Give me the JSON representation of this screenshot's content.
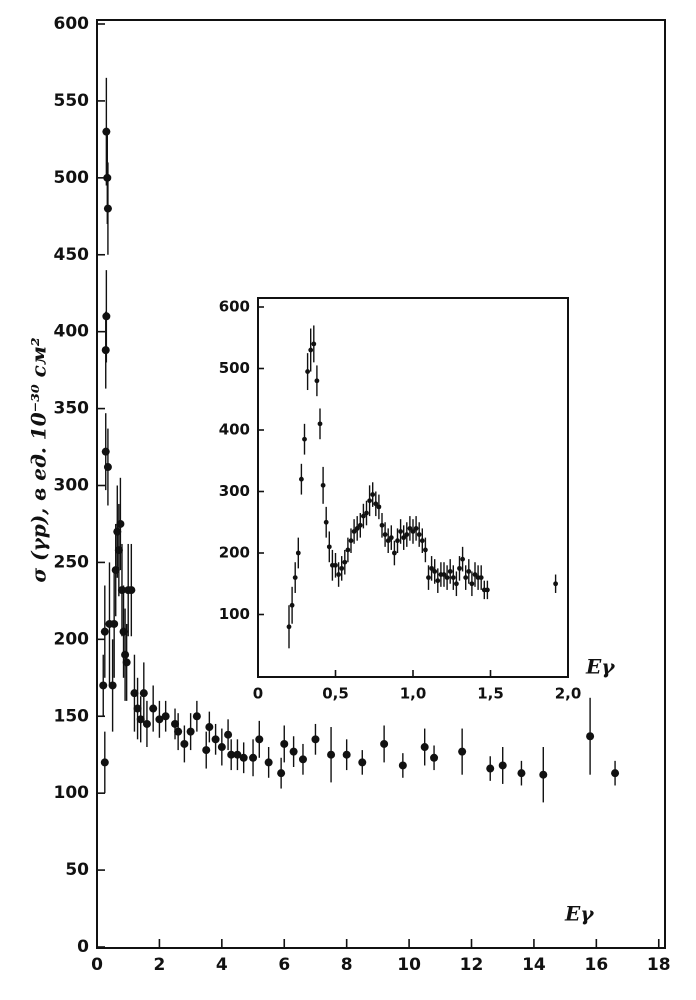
{
  "chart_data": [
    {
      "type": "scatter",
      "y_label": "σ (γp), в ед. 10⁻³⁰ см²",
      "x_label": "Eγ",
      "xlim": [
        0,
        18.2
      ],
      "ylim": [
        0,
        600
      ],
      "xticks": [
        0,
        2,
        4,
        6,
        8,
        10,
        12,
        14,
        16,
        18
      ],
      "yticks": [
        0,
        50,
        100,
        150,
        200,
        250,
        300,
        350,
        400,
        450,
        500,
        550,
        600
      ],
      "color": "#111111",
      "x": [
        0.2,
        0.25,
        0.25,
        0.28,
        0.28,
        0.3,
        0.3,
        0.33,
        0.35,
        0.35,
        0.4,
        0.5,
        0.55,
        0.6,
        0.65,
        0.7,
        0.75,
        0.8,
        0.85,
        0.9,
        0.95,
        1.0,
        1.1,
        1.2,
        1.3,
        1.4,
        1.5,
        1.6,
        1.8,
        2.0,
        2.2,
        2.5,
        2.6,
        2.8,
        3.0,
        3.2,
        3.5,
        3.6,
        3.8,
        4.0,
        4.2,
        4.3,
        4.5,
        4.7,
        5.0,
        5.2,
        5.5,
        5.9,
        6.0,
        6.3,
        6.6,
        7.0,
        7.5,
        8.0,
        8.5,
        9.2,
        9.8,
        10.5,
        10.8,
        11.7,
        12.6,
        13.0,
        13.6,
        14.3,
        15.8,
        16.6
      ],
      "values": [
        170,
        120,
        205,
        322,
        388,
        410,
        530,
        500,
        480,
        312,
        210,
        170,
        210,
        245,
        270,
        258,
        275,
        232,
        205,
        190,
        185,
        232,
        232,
        165,
        155,
        148,
        165,
        145,
        155,
        148,
        150,
        145,
        140,
        132,
        140,
        150,
        128,
        143,
        135,
        130,
        138,
        125,
        125,
        123,
        123,
        135,
        120,
        113,
        132,
        127,
        122,
        135,
        125,
        125,
        120,
        132,
        118,
        130,
        123,
        127,
        116,
        118,
        113,
        112,
        137,
        113
      ],
      "errors": [
        20,
        20,
        30,
        25,
        25,
        30,
        35,
        30,
        30,
        25,
        40,
        30,
        35,
        30,
        30,
        30,
        30,
        30,
        30,
        30,
        25,
        30,
        30,
        25,
        20,
        15,
        20,
        15,
        15,
        12,
        10,
        10,
        12,
        12,
        12,
        10,
        12,
        10,
        10,
        12,
        10,
        10,
        10,
        10,
        12,
        12,
        10,
        10,
        12,
        10,
        10,
        10,
        18,
        10,
        8,
        12,
        8,
        12,
        8,
        15,
        8,
        12,
        8,
        18,
        25,
        8
      ]
    },
    {
      "type": "scatter",
      "x_label": "Eγ",
      "xlim": [
        0,
        2.0
      ],
      "ylim": [
        0,
        600
      ],
      "xticks": [
        0,
        {
          "value": 0.5,
          "label": "0,5"
        },
        {
          "value": 1.0,
          "label": "1,0"
        },
        {
          "value": 1.5,
          "label": "1,5"
        },
        {
          "value": 2.0,
          "label": "2,0"
        }
      ],
      "yticks": [
        100,
        200,
        300,
        400,
        500,
        600
      ],
      "color": "#111111",
      "x": [
        0.2,
        0.22,
        0.24,
        0.26,
        0.28,
        0.3,
        0.32,
        0.34,
        0.36,
        0.38,
        0.4,
        0.42,
        0.44,
        0.46,
        0.48,
        0.5,
        0.52,
        0.54,
        0.56,
        0.58,
        0.6,
        0.62,
        0.64,
        0.66,
        0.68,
        0.7,
        0.72,
        0.74,
        0.76,
        0.78,
        0.8,
        0.82,
        0.84,
        0.86,
        0.88,
        0.9,
        0.92,
        0.94,
        0.96,
        0.98,
        1.0,
        1.02,
        1.04,
        1.06,
        1.08,
        1.1,
        1.12,
        1.14,
        1.16,
        1.18,
        1.2,
        1.22,
        1.24,
        1.26,
        1.28,
        1.3,
        1.32,
        1.34,
        1.36,
        1.38,
        1.4,
        1.42,
        1.44,
        1.46,
        1.48,
        1.92
      ],
      "values": [
        80,
        115,
        160,
        200,
        320,
        385,
        495,
        530,
        540,
        480,
        410,
        310,
        250,
        210,
        180,
        180,
        165,
        175,
        185,
        205,
        220,
        235,
        240,
        245,
        260,
        265,
        285,
        295,
        280,
        275,
        245,
        230,
        220,
        225,
        200,
        220,
        235,
        225,
        230,
        240,
        235,
        240,
        230,
        220,
        205,
        160,
        175,
        170,
        155,
        165,
        165,
        160,
        170,
        160,
        150,
        175,
        190,
        160,
        170,
        150,
        165,
        160,
        160,
        140,
        140,
        150
      ],
      "errors": [
        35,
        30,
        25,
        25,
        25,
        25,
        30,
        35,
        30,
        25,
        25,
        30,
        25,
        25,
        25,
        20,
        20,
        20,
        20,
        20,
        20,
        20,
        20,
        20,
        20,
        20,
        25,
        20,
        20,
        20,
        20,
        20,
        20,
        20,
        20,
        20,
        20,
        20,
        20,
        20,
        20,
        20,
        20,
        20,
        20,
        20,
        20,
        20,
        20,
        20,
        20,
        20,
        20,
        20,
        20,
        20,
        20,
        20,
        20,
        20,
        20,
        20,
        20,
        15,
        15,
        15
      ]
    }
  ]
}
